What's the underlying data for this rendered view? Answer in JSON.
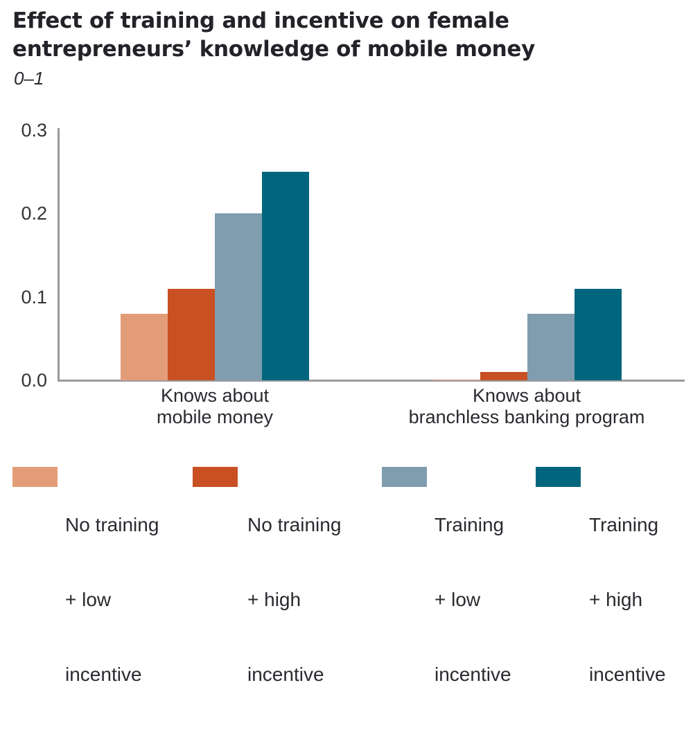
{
  "chart_data": {
    "type": "bar",
    "title": "Effect of training and incentive on female entrepreneurs’ knowledge of mobile money",
    "subtitle": "0–1",
    "xlabel": "",
    "ylabel": "0–1",
    "ylim": [
      0,
      0.3
    ],
    "yticks": [
      "0.0",
      "0.1",
      "0.2",
      "0.3"
    ],
    "grid": false,
    "legend_position": "bottom",
    "categories": [
      "Knows about mobile money",
      "Knows about branchless banking program"
    ],
    "category_labels": [
      [
        "Knows about",
        "mobile money"
      ],
      [
        "Knows about",
        "branchless banking program"
      ]
    ],
    "series": [
      {
        "name": "No training + low incentive",
        "color": "#E29D78",
        "values": [
          0.08,
          0.001
        ]
      },
      {
        "name": "No training + high incentive",
        "color": "#C85023",
        "values": [
          0.11,
          0.01
        ]
      },
      {
        "name": "Training + low incentive",
        "color": "#7F9DAF",
        "values": [
          0.2,
          0.08
        ]
      },
      {
        "name": "Training + high incentive",
        "color": "#00667D",
        "values": [
          0.25,
          0.11
        ]
      }
    ]
  },
  "header": {
    "title": "Effect of training and incentive on female entrepreneurs’ knowledge of mobile money",
    "unit": "0–1"
  },
  "legend": [
    {
      "line1": "No training",
      "line2": "+ low",
      "line3": "incentive"
    },
    {
      "line1": "No training",
      "line2": "+ high",
      "line3": "incentive"
    },
    {
      "line1": "Training",
      "line2": "+ low",
      "line3": "incentive"
    },
    {
      "line1": "Training",
      "line2": "+ high",
      "line3": "incentive"
    }
  ]
}
